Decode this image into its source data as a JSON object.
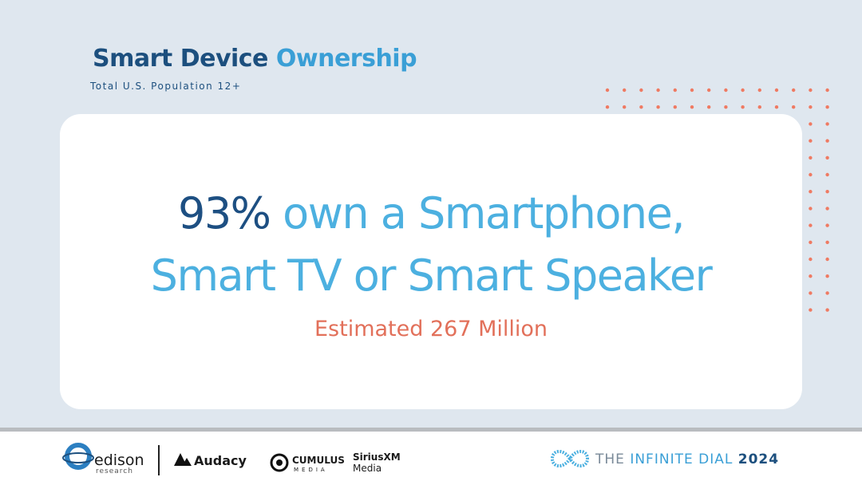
{
  "header": {
    "title_part1": "Smart Device",
    "title_part2": "Ownership",
    "subtitle": "Total U.S. Population 12+"
  },
  "headline": {
    "figure": "93%",
    "line1": "own a Smartphone,",
    "line2": "Smart TV or Smart Speaker",
    "estimate": "Estimated 267 Million"
  },
  "footer": {
    "logos": [
      {
        "name": "edison",
        "sub": "research"
      },
      {
        "name": "Audacy"
      },
      {
        "name": "CUMULUS",
        "sub": "MEDIA"
      },
      {
        "name": "SiriusXM",
        "sub": "Media"
      }
    ],
    "brand": {
      "the": "THE",
      "name": "INFINITE DIAL",
      "year": "2024"
    }
  }
}
